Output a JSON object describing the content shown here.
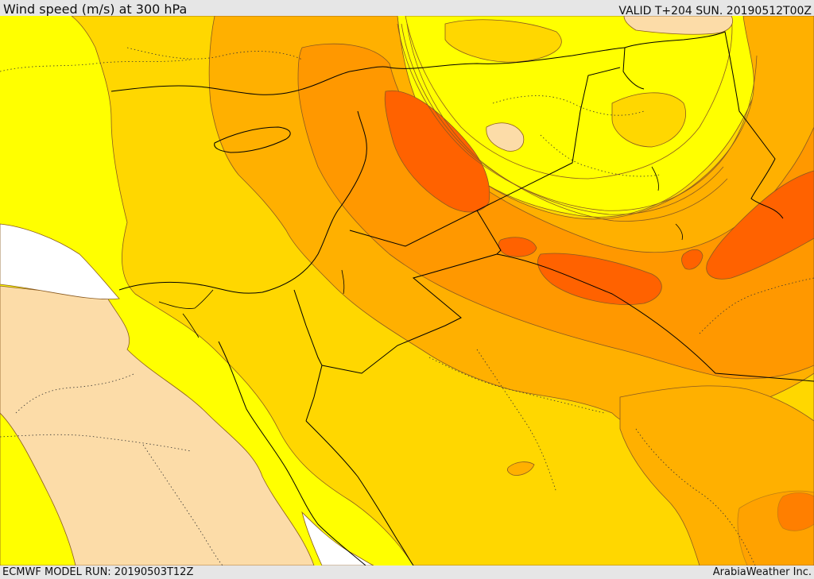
{
  "header": {
    "title": "Wind speed (m/s) at 300 hPa",
    "valid": "VALID T+204 SUN. 20190512T00Z"
  },
  "footer": {
    "model_run": "ECMWF MODEL RUN: 20190503T12Z",
    "brand": "ArabiaWeather Inc."
  },
  "map": {
    "field": "wind speed at 300 hPa",
    "colors": {
      "no_data": "#ffffff",
      "light_band": "#fcdca8",
      "yellow_band": "#ffff00",
      "gold_band": "#ffd700",
      "amber_band": "#ffb000",
      "orange_band": "#ff9800",
      "deep_orange_band": "#ff6200",
      "contour_line": "#8a5a20",
      "border_line": "#000000"
    }
  }
}
